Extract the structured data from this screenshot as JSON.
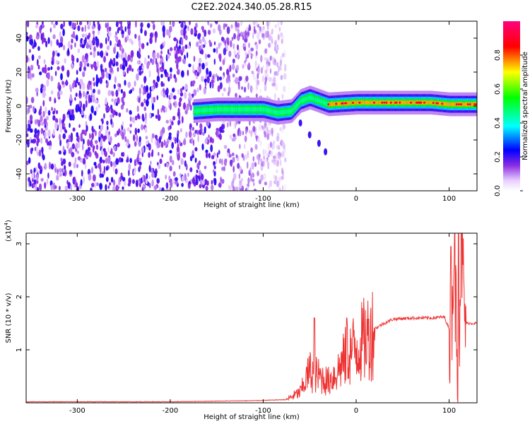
{
  "title": "C2E2.2024.340.05.28.R15",
  "chart_data": [
    {
      "type": "heatmap",
      "xlabel": "Height of straight line (km)",
      "ylabel": "Frequency (Hz)",
      "xlim": [
        -355,
        130
      ],
      "ylim": [
        -50,
        50
      ],
      "xticks": [
        -300,
        -200,
        -100,
        0,
        100
      ],
      "yticks": [
        -40,
        -20,
        0,
        20,
        40
      ],
      "colorbar": {
        "label": "Normalized spectral amplitude",
        "range": [
          0,
          1
        ],
        "ticks": [
          0.0,
          0.2,
          0.4,
          0.6,
          0.8
        ],
        "tick_labels": [
          "0.0",
          "0.2",
          "0.4",
          "0.6",
          "0.8"
        ]
      },
      "features": {
        "noise_region_x": [
          -355,
          -95
        ],
        "signal_line": [
          {
            "x": -175,
            "y": -3
          },
          {
            "x": -150,
            "y": -2
          },
          {
            "x": -120,
            "y": -2
          },
          {
            "x": -100,
            "y": -2
          },
          {
            "x": -85,
            "y": -4
          },
          {
            "x": -70,
            "y": -3
          },
          {
            "x": -60,
            "y": 3
          },
          {
            "x": -50,
            "y": 5
          },
          {
            "x": -40,
            "y": 3
          },
          {
            "x": -30,
            "y": 1
          },
          {
            "x": 0,
            "y": 2
          },
          {
            "x": 50,
            "y": 2
          },
          {
            "x": 80,
            "y": 2
          },
          {
            "x": 100,
            "y": 1
          },
          {
            "x": 130,
            "y": 1
          }
        ],
        "secondary_branch": [
          {
            "x": -60,
            "y": -10
          },
          {
            "x": -50,
            "y": -17
          },
          {
            "x": -40,
            "y": -22
          },
          {
            "x": -33,
            "y": -27
          }
        ]
      }
    },
    {
      "type": "line",
      "xlabel": "Height of straight line (km)",
      "ylabel": "SNR (10 * v/v)",
      "scale_label": "(x10",
      "scale_exponent": "4",
      "scale_suffix": ")",
      "xlim": [
        -355,
        130
      ],
      "ylim": [
        0,
        3.2
      ],
      "xticks": [
        -300,
        -200,
        -100,
        0,
        100
      ],
      "yticks": [
        1,
        2,
        3
      ],
      "series": [
        {
          "color": "#ee3333",
          "points": [
            {
              "x": -355,
              "y": 0.02
            },
            {
              "x": -200,
              "y": 0.02
            },
            {
              "x": -110,
              "y": 0.04
            },
            {
              "x": -75,
              "y": 0.06
            },
            {
              "x": -60,
              "y": 0.2
            },
            {
              "x": -50,
              "y": 0.6
            },
            {
              "x": -40,
              "y": 0.5
            },
            {
              "x": -30,
              "y": 0.4
            },
            {
              "x": -20,
              "y": 0.6
            },
            {
              "x": -10,
              "y": 0.9
            },
            {
              "x": 0,
              "y": 1.05
            },
            {
              "x": 10,
              "y": 1.2
            },
            {
              "x": 20,
              "y": 1.4
            },
            {
              "x": 30,
              "y": 1.5
            },
            {
              "x": 40,
              "y": 1.58
            },
            {
              "x": 60,
              "y": 1.6
            },
            {
              "x": 80,
              "y": 1.6
            },
            {
              "x": 95,
              "y": 1.62
            },
            {
              "x": 102,
              "y": 1.3
            },
            {
              "x": 105,
              "y": 2.9
            },
            {
              "x": 110,
              "y": 0.7
            },
            {
              "x": 113,
              "y": 3.15
            },
            {
              "x": 117,
              "y": 1.5
            },
            {
              "x": 130,
              "y": 1.5
            }
          ],
          "peaks": [
            {
              "x": -45,
              "y": 1.6
            },
            {
              "x": -10,
              "y": 1.6
            },
            {
              "x": 102,
              "y": 2.95
            },
            {
              "x": 110,
              "y": 3.2
            }
          ]
        }
      ]
    }
  ]
}
